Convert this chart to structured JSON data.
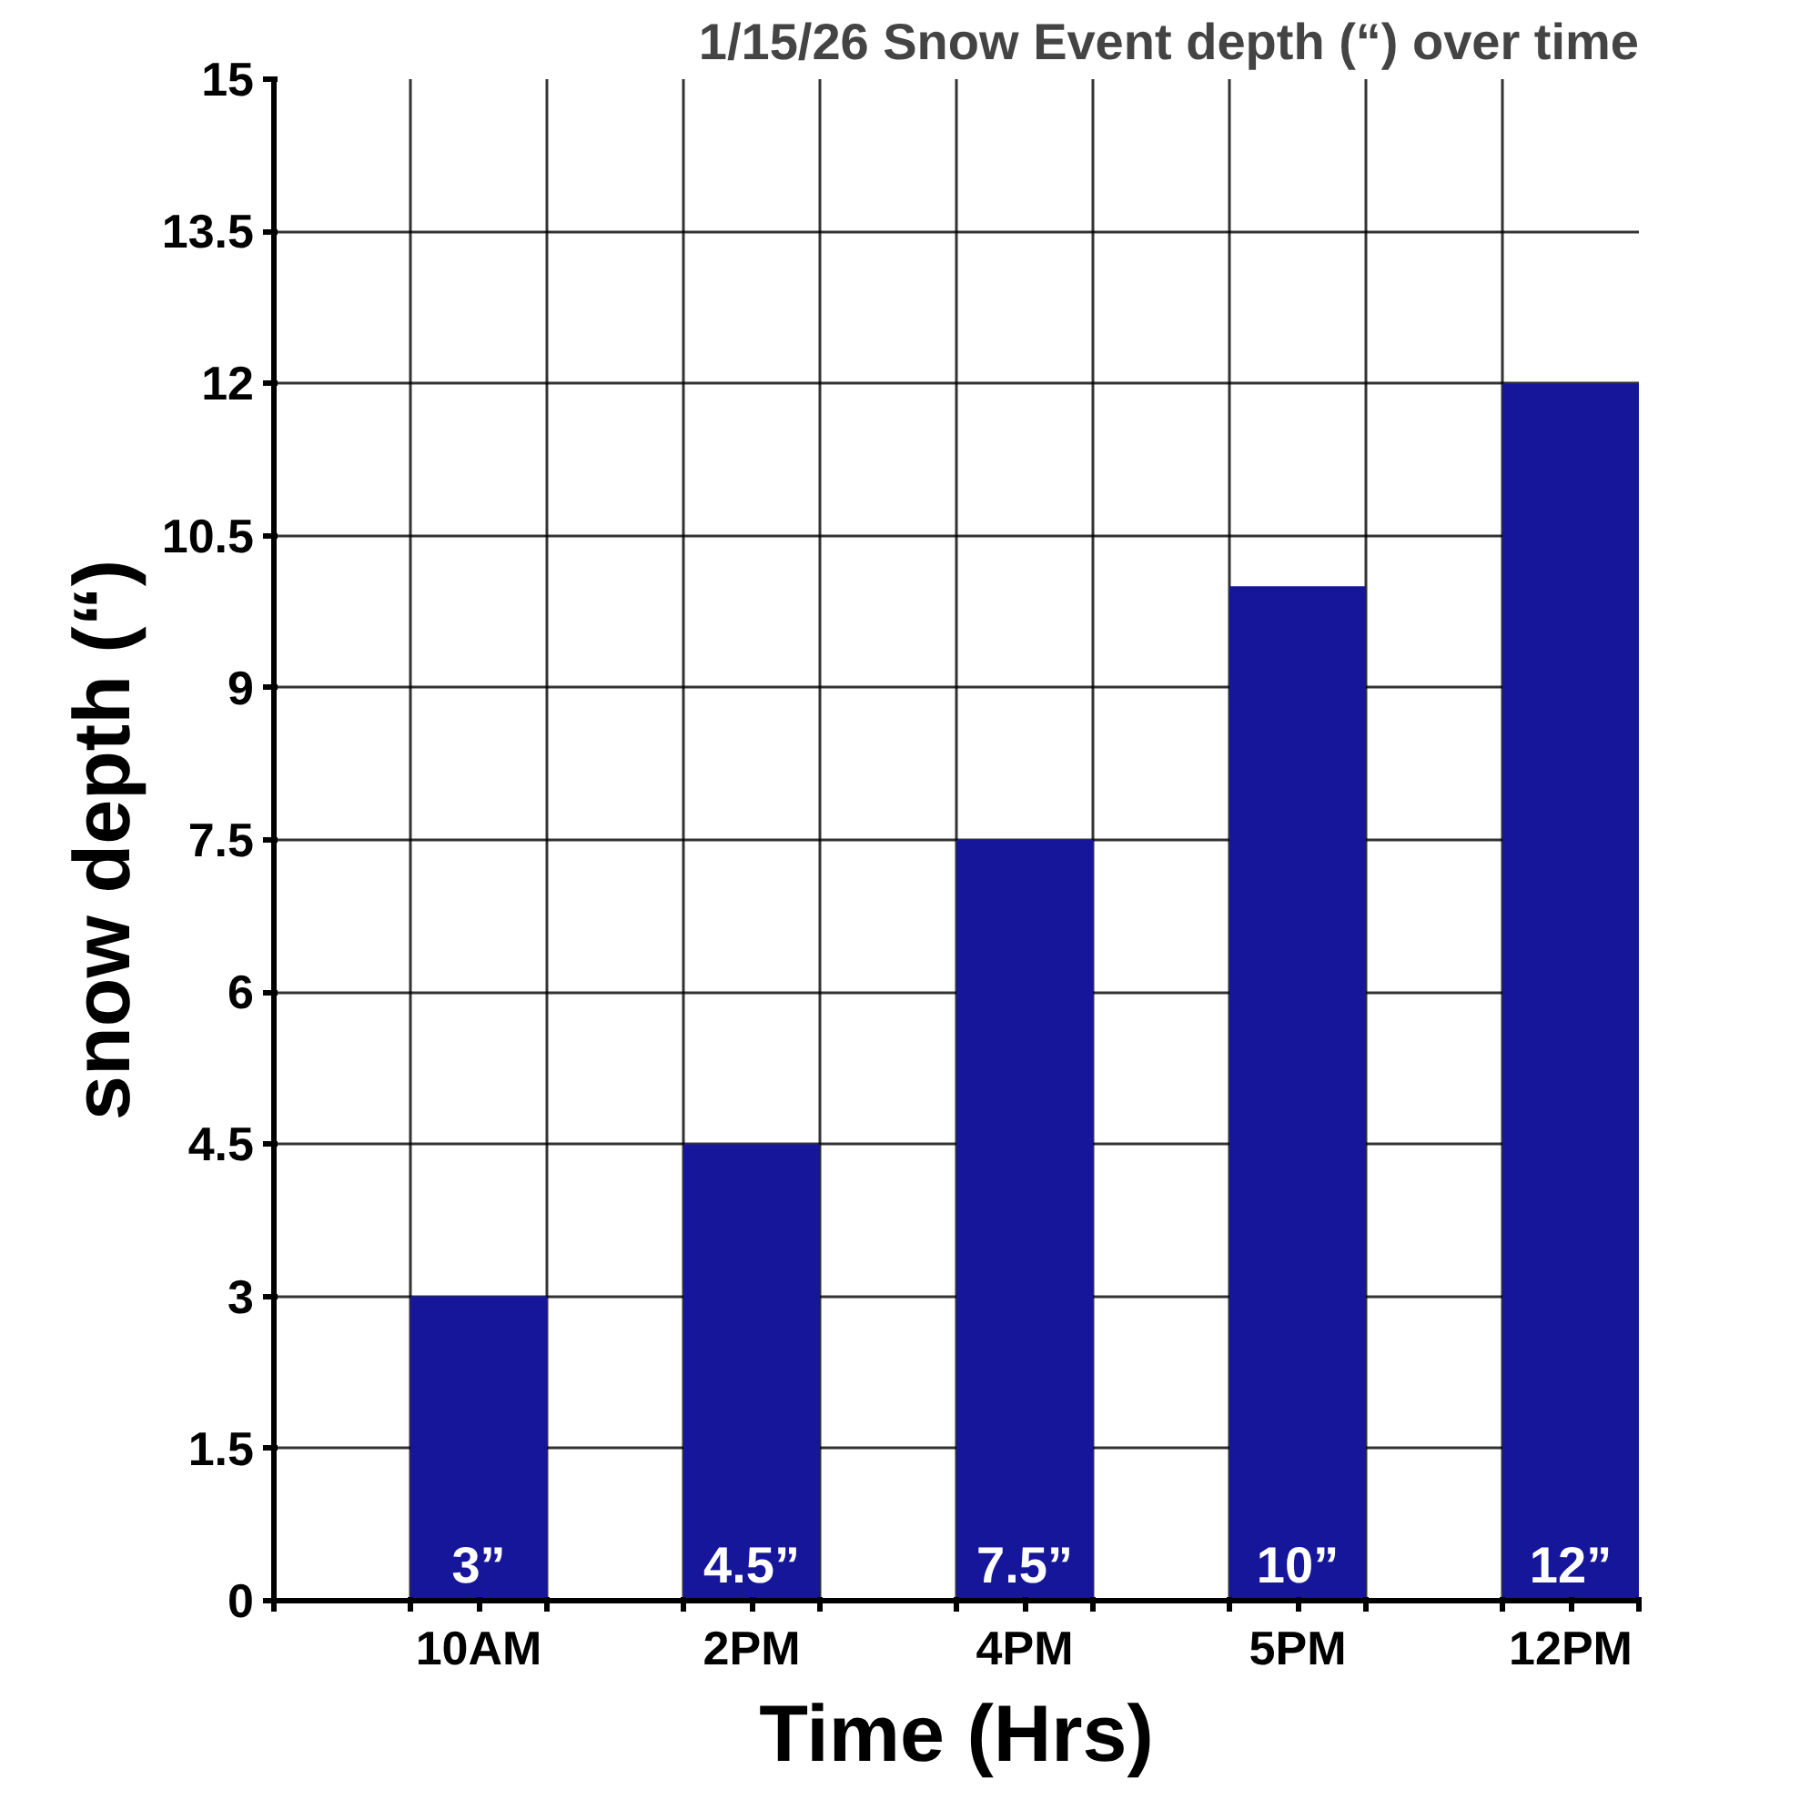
{
  "chart_data": {
    "type": "bar",
    "title": "1/15/26 Snow Event depth (“) over time",
    "xlabel": "Time (Hrs)",
    "ylabel": "snow depth (“)",
    "categories": [
      "10AM",
      "2PM",
      "4PM",
      "5PM",
      "12PM"
    ],
    "values": [
      3,
      4.5,
      7.5,
      10,
      12
    ],
    "value_labels": [
      "3”",
      "4.5”",
      "7.5”",
      "10”",
      "12”"
    ],
    "color": "#16169a",
    "ylim": [
      0,
      15
    ],
    "yticks": [
      0,
      1.5,
      3,
      4.5,
      6,
      7.5,
      9,
      10.5,
      12,
      13.5,
      15
    ],
    "grid": true
  }
}
